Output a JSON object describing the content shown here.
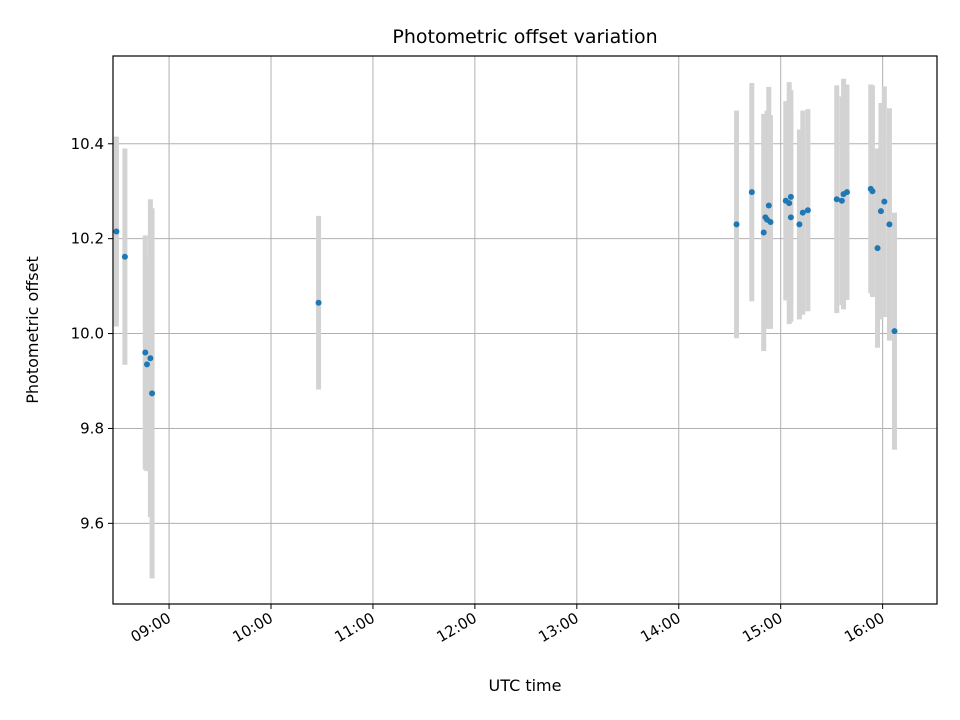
{
  "chart_data": {
    "type": "scatter",
    "title": "Photometric offset variation",
    "xlabel": "UTC time",
    "ylabel": "Photometric offset",
    "grid": true,
    "legend": "none",
    "xlim": [
      "08:27",
      "16:32"
    ],
    "ylim": [
      9.43,
      10.585
    ],
    "x_ticks": [
      "09:00",
      "10:00",
      "11:00",
      "12:00",
      "13:00",
      "14:00",
      "15:00",
      "16:00"
    ],
    "y_ticks": [
      9.6,
      9.8,
      10.0,
      10.2,
      10.4
    ],
    "marker_color": "#1f77b4",
    "errorbar_color": "#d3d3d3",
    "points": [
      {
        "time": "08:29",
        "y": 10.215,
        "yerr": 0.2
      },
      {
        "time": "08:34",
        "y": 10.162,
        "yerr": 0.228
      },
      {
        "time": "08:46",
        "y": 9.96,
        "yerr": 0.247
      },
      {
        "time": "08:47",
        "y": 9.935,
        "yerr": 0.225
      },
      {
        "time": "08:49",
        "y": 9.948,
        "yerr": 0.335
      },
      {
        "time": "08:50",
        "y": 9.874,
        "yerr": 0.39
      },
      {
        "time": "10:28",
        "y": 10.065,
        "yerr": 0.183
      },
      {
        "time": "14:34",
        "y": 10.23,
        "yerr": 0.24
      },
      {
        "time": "14:43",
        "y": 10.298,
        "yerr": 0.23
      },
      {
        "time": "14:50",
        "y": 10.213,
        "yerr": 0.25
      },
      {
        "time": "14:51",
        "y": 10.245,
        "yerr": 0.2
      },
      {
        "time": "14:52",
        "y": 10.24,
        "yerr": 0.23
      },
      {
        "time": "14:53",
        "y": 10.27,
        "yerr": 0.25
      },
      {
        "time": "14:54",
        "y": 10.235,
        "yerr": 0.225
      },
      {
        "time": "15:03",
        "y": 10.28,
        "yerr": 0.21
      },
      {
        "time": "15:05",
        "y": 10.275,
        "yerr": 0.255
      },
      {
        "time": "15:06",
        "y": 10.245,
        "yerr": 0.22
      },
      {
        "time": "15:06",
        "y": 10.288,
        "yerr": 0.225
      },
      {
        "time": "15:11",
        "y": 10.23,
        "yerr": 0.2
      },
      {
        "time": "15:13",
        "y": 10.255,
        "yerr": 0.215
      },
      {
        "time": "15:16",
        "y": 10.26,
        "yerr": 0.213
      },
      {
        "time": "15:33",
        "y": 10.283,
        "yerr": 0.24
      },
      {
        "time": "15:36",
        "y": 10.28,
        "yerr": 0.22
      },
      {
        "time": "15:37",
        "y": 10.294,
        "yerr": 0.243
      },
      {
        "time": "15:39",
        "y": 10.298,
        "yerr": 0.227
      },
      {
        "time": "15:53",
        "y": 10.305,
        "yerr": 0.22
      },
      {
        "time": "15:54",
        "y": 10.3,
        "yerr": 0.223
      },
      {
        "time": "15:57",
        "y": 10.18,
        "yerr": 0.21
      },
      {
        "time": "15:59",
        "y": 10.258,
        "yerr": 0.228
      },
      {
        "time": "16:01",
        "y": 10.278,
        "yerr": 0.243
      },
      {
        "time": "16:04",
        "y": 10.23,
        "yerr": 0.245
      },
      {
        "time": "16:07",
        "y": 10.005,
        "yerr": 0.25
      }
    ]
  }
}
